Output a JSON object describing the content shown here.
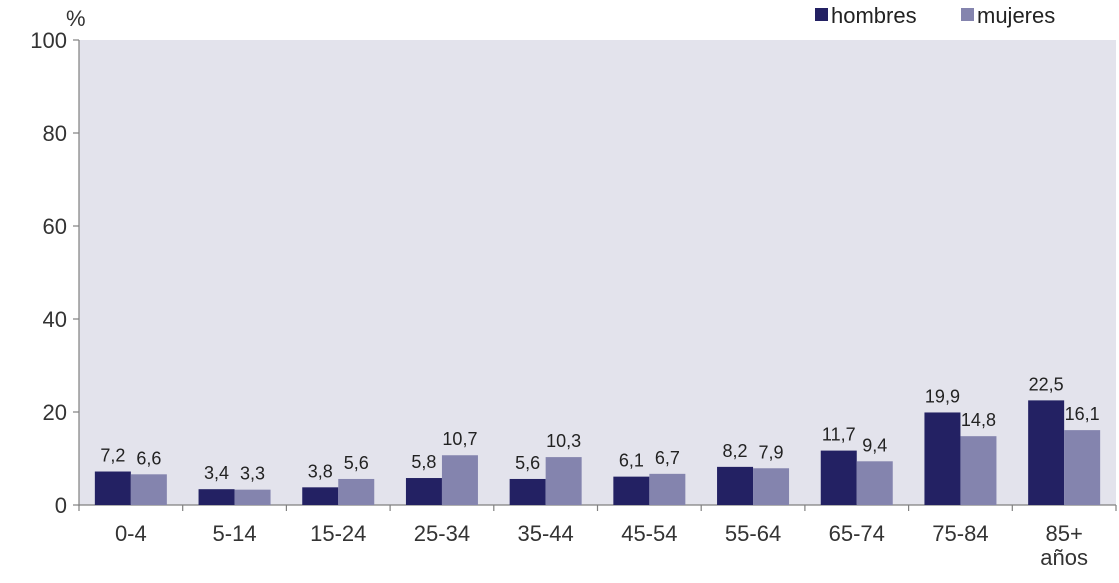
{
  "chart_data": {
    "type": "bar",
    "title": "",
    "ylabel": "%",
    "xlabel": "",
    "ylim": [
      0,
      100
    ],
    "yticks": [
      0,
      20,
      40,
      60,
      80,
      100
    ],
    "grid": false,
    "legend_position": "top-right",
    "categories": [
      "0-4",
      "5-14",
      "15-24",
      "25-34",
      "35-44",
      "45-54",
      "55-64",
      "65-74",
      "75-84",
      "85+ años"
    ],
    "series": [
      {
        "name": "hombres",
        "color": "#232163",
        "values": [
          7.2,
          3.4,
          3.8,
          5.8,
          5.6,
          6.1,
          8.2,
          11.7,
          19.9,
          22.5
        ],
        "labels": [
          "7,2",
          "3,4",
          "3,8",
          "5,8",
          "5,6",
          "6,1",
          "8,2",
          "11,7",
          "19,9",
          "22,5"
        ]
      },
      {
        "name": "mujeres",
        "color": "#8484ae",
        "values": [
          6.6,
          3.3,
          5.6,
          10.7,
          10.3,
          6.7,
          7.9,
          9.4,
          14.8,
          16.1
        ],
        "labels": [
          "6,6",
          "3,3",
          "5,6",
          "10,7",
          "10,3",
          "6,7",
          "7,9",
          "9,4",
          "14,8",
          "16,1"
        ]
      }
    ],
    "plot_background": "#e3e3ec"
  }
}
